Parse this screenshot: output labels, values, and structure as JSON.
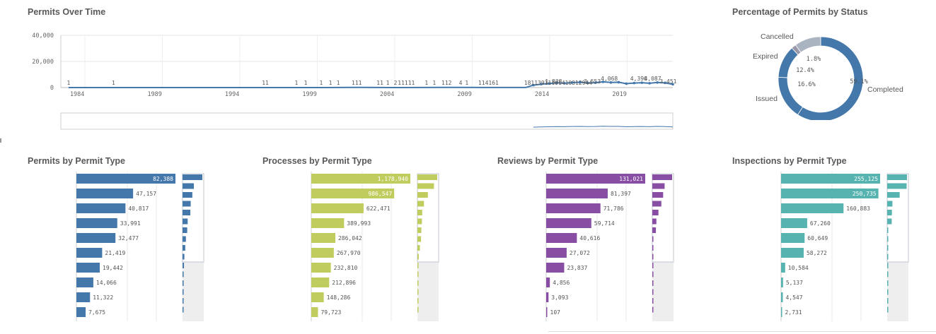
{
  "chart_data": [
    {
      "id": "over-time",
      "type": "line",
      "title": "Permits Over Time",
      "ylim": [
        0,
        40000
      ],
      "yticks": [
        "40,000",
        "20,000",
        "0"
      ],
      "ytick_values": [
        40000,
        20000,
        0
      ],
      "xlim": [
        1983.5,
        2023
      ],
      "xtick_labels": [
        "1984",
        "1989",
        "1994",
        "1999",
        "2004",
        "2009",
        "2014",
        "2019"
      ],
      "xtick_values": [
        1984,
        1989,
        1994,
        1999,
        2004,
        2009,
        2014,
        2019
      ],
      "series_color": "#4477aa",
      "data_labels": [
        {
          "x": 1984.0,
          "text": "1"
        },
        {
          "x": 1986.9,
          "text": "1"
        },
        {
          "x": 1996.7,
          "text": "11"
        },
        {
          "x": 1998.7,
          "text": "1"
        },
        {
          "x": 1999.3,
          "text": "1"
        },
        {
          "x": 2000.3,
          "text": "1"
        },
        {
          "x": 2000.9,
          "text": "1"
        },
        {
          "x": 2001.4,
          "text": "1"
        },
        {
          "x": 2002.6,
          "text": "111"
        },
        {
          "x": 2004.1,
          "text": "11"
        },
        {
          "x": 2004.6,
          "text": "1"
        },
        {
          "x": 2005.1,
          "text": "2"
        },
        {
          "x": 2005.8,
          "text": "11111"
        },
        {
          "x": 2007.1,
          "text": "1"
        },
        {
          "x": 2007.6,
          "text": "1"
        },
        {
          "x": 2008.4,
          "text": "112"
        },
        {
          "x": 2009.3,
          "text": "4"
        },
        {
          "x": 2009.7,
          "text": "1"
        },
        {
          "x": 2011.1,
          "text": "114161"
        },
        {
          "x": 2015.6,
          "text": "18113911101410312944"
        },
        {
          "x": 2015.3,
          "text": "1,838"
        },
        {
          "x": 2017.8,
          "text": "3,553"
        },
        {
          "x": 2018.9,
          "text": "4,068"
        },
        {
          "x": 2020.8,
          "text": "4,390"
        },
        {
          "x": 2021.7,
          "text": "4,087"
        },
        {
          "x": 2022.7,
          "text": "3,451"
        }
      ],
      "points": [
        [
          1984,
          1
        ],
        [
          1986.9,
          1
        ],
        [
          1996.7,
          11
        ],
        [
          1998.7,
          1
        ],
        [
          2000.3,
          1
        ],
        [
          2002.6,
          111
        ],
        [
          2005.1,
          2
        ],
        [
          2008.4,
          112
        ],
        [
          2011.1,
          41
        ],
        [
          2013.5,
          44
        ],
        [
          2014.0,
          1838
        ],
        [
          2014.5,
          2600
        ],
        [
          2015.0,
          3100
        ],
        [
          2015.5,
          3553
        ],
        [
          2016.0,
          3300
        ],
        [
          2016.5,
          3800
        ],
        [
          2017.0,
          4068
        ],
        [
          2017.5,
          3500
        ],
        [
          2018.0,
          3700
        ],
        [
          2018.5,
          4390
        ],
        [
          2019.0,
          3900
        ],
        [
          2019.5,
          4087
        ],
        [
          2020.0,
          3000
        ],
        [
          2020.5,
          3451
        ],
        [
          2021.0,
          3700
        ],
        [
          2021.5,
          3300
        ],
        [
          2022.0,
          3900
        ],
        [
          2022.5,
          3600
        ],
        [
          2023.0,
          2500
        ]
      ]
    },
    {
      "id": "status",
      "type": "pie",
      "title": "Percentage of Permits by Status",
      "slice_labels": [
        "Completed",
        "Issued",
        "Expired",
        "Cancelled"
      ],
      "values": [
        59.1,
        16.6,
        12.4,
        1.8
      ],
      "value_labels": [
        "59.1%",
        "16.6%",
        "12.4%",
        "1.8%"
      ],
      "colors": [
        "#4477aa",
        "#4477aa",
        "#4477aa",
        "#9999aa",
        "#aab3c0"
      ],
      "remainder": 10.1
    },
    {
      "id": "permits-type",
      "type": "bar",
      "title": "Permits by Permit Type",
      "color": "#4477aa",
      "values": [
        82388,
        47157,
        40817,
        33991,
        32477,
        21419,
        19442,
        14066,
        11322,
        7675
      ],
      "labels": [
        "82,388",
        "47,157",
        "40,817",
        "33,991",
        "32,477",
        "21,419",
        "19,442",
        "14,066",
        "11,322",
        "7,675"
      ],
      "mini_values": [
        82388,
        47157,
        40817,
        33991,
        32477,
        21419,
        19442,
        14066,
        11322,
        7675,
        6000,
        4500,
        3000,
        2000,
        1000,
        500
      ]
    },
    {
      "id": "processes-type",
      "type": "bar",
      "title": "Processes by Permit Type",
      "color": "#c1cc5e",
      "values": [
        1178940,
        986547,
        622471,
        389993,
        286042,
        267970,
        232810,
        212896,
        148286,
        79723
      ],
      "labels": [
        "1,178,940",
        "986,547",
        "622,471",
        "389,993",
        "286,042",
        "267,970",
        "232,810",
        "212,896",
        "148,286",
        "79,723"
      ],
      "mini_values": [
        1178940,
        986547,
        622471,
        389993,
        286042,
        267970,
        232810,
        212896,
        148286,
        79723,
        60000,
        40000,
        30000,
        20000,
        10000,
        5000
      ]
    },
    {
      "id": "reviews-type",
      "type": "bar",
      "title": "Reviews by Permit Type",
      "color": "#884ea3",
      "values": [
        131021,
        81397,
        71786,
        59714,
        40616,
        27072,
        23837,
        4856,
        3093,
        107
      ],
      "labels": [
        "131,021",
        "81,397",
        "71,786",
        "59,714",
        "40,616",
        "27,072",
        "23,837",
        "4,856",
        "3,093",
        "107"
      ],
      "mini_values": [
        131021,
        81397,
        71786,
        59714,
        40616,
        27072,
        23837,
        4856,
        3093,
        107,
        80,
        50,
        30,
        20,
        10,
        5
      ]
    },
    {
      "id": "inspections-type",
      "type": "bar",
      "title": "Inspections by Permit Type",
      "color": "#56b3b0",
      "values": [
        255125,
        250735,
        160883,
        67260,
        60649,
        58272,
        10584,
        5137,
        4547,
        2731
      ],
      "labels": [
        "255,125",
        "250,735",
        "160,883",
        "67,260",
        "60,649",
        "58,272",
        "10,584",
        "5,137",
        "4,547",
        "2,731"
      ],
      "mini_values": [
        255125,
        250735,
        160883,
        67260,
        60649,
        58272,
        10584,
        5137,
        4547,
        2731,
        2000,
        1500,
        1000,
        500,
        200,
        100
      ]
    }
  ]
}
